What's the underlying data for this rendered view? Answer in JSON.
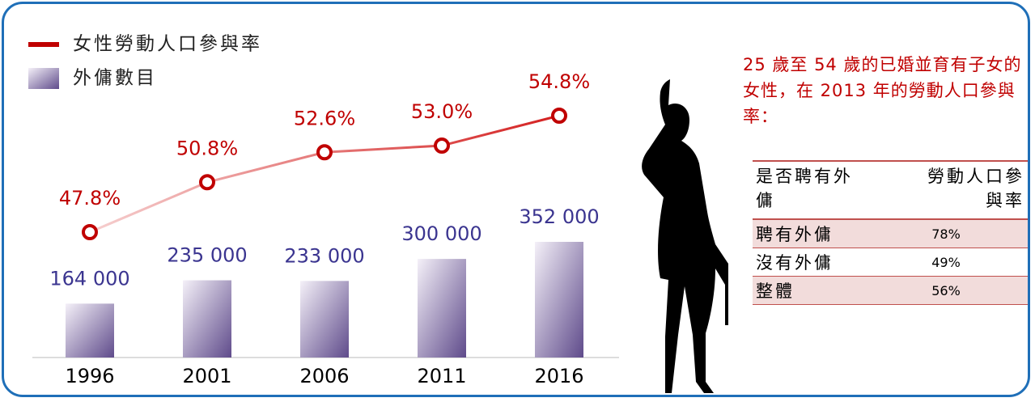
{
  "chart_data": {
    "type": "combo",
    "categories": [
      "1996",
      "2001",
      "2006",
      "2011",
      "2016"
    ],
    "series": [
      {
        "name": "女性勞動人口參與率",
        "type": "line",
        "color": "#c00000",
        "values": [
          47.8,
          50.8,
          52.6,
          53.0,
          54.8
        ],
        "value_labels": [
          "47.8%",
          "50.8%",
          "52.6%",
          "53.0%",
          "54.8%"
        ]
      },
      {
        "name": "外傭數目",
        "type": "bar",
        "color": "#5f4b8b",
        "values": [
          164000,
          235000,
          233000,
          300000,
          352000
        ],
        "value_labels": [
          "164 000",
          "235 000",
          "233 000",
          "300 000",
          "352 000"
        ]
      }
    ]
  },
  "note": "25 歲至 54 歲的已婚並育有子女的女性，在 2013 年的勞動人口參與率：",
  "table": {
    "header": [
      "是否聘有外傭",
      "勞動人口參與率"
    ],
    "rows": [
      [
        "聘有外傭",
        "78%"
      ],
      [
        "沒有外傭",
        "49%"
      ],
      [
        "整體",
        "56%"
      ]
    ]
  }
}
